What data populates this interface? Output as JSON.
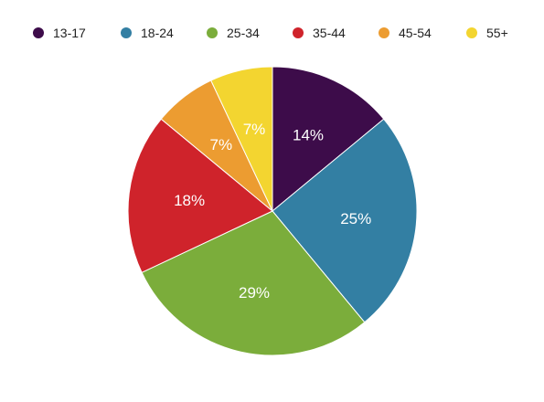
{
  "chart_data": {
    "type": "pie",
    "title": "",
    "legend_position": "top",
    "slices": [
      {
        "label": "13-17",
        "value": 14,
        "display": "14%",
        "color": "#3d0c4a"
      },
      {
        "label": "18-24",
        "value": 25,
        "display": "25%",
        "color": "#337fa3"
      },
      {
        "label": "25-34",
        "value": 29,
        "display": "29%",
        "color": "#7bad3b"
      },
      {
        "label": "35-44",
        "value": 18,
        "display": "18%",
        "color": "#cf232b"
      },
      {
        "label": "45-54",
        "value": 7,
        "display": "7%",
        "color": "#ec9c31"
      },
      {
        "label": "55+",
        "value": 7,
        "display": "7%",
        "color": "#f3d530"
      }
    ]
  }
}
